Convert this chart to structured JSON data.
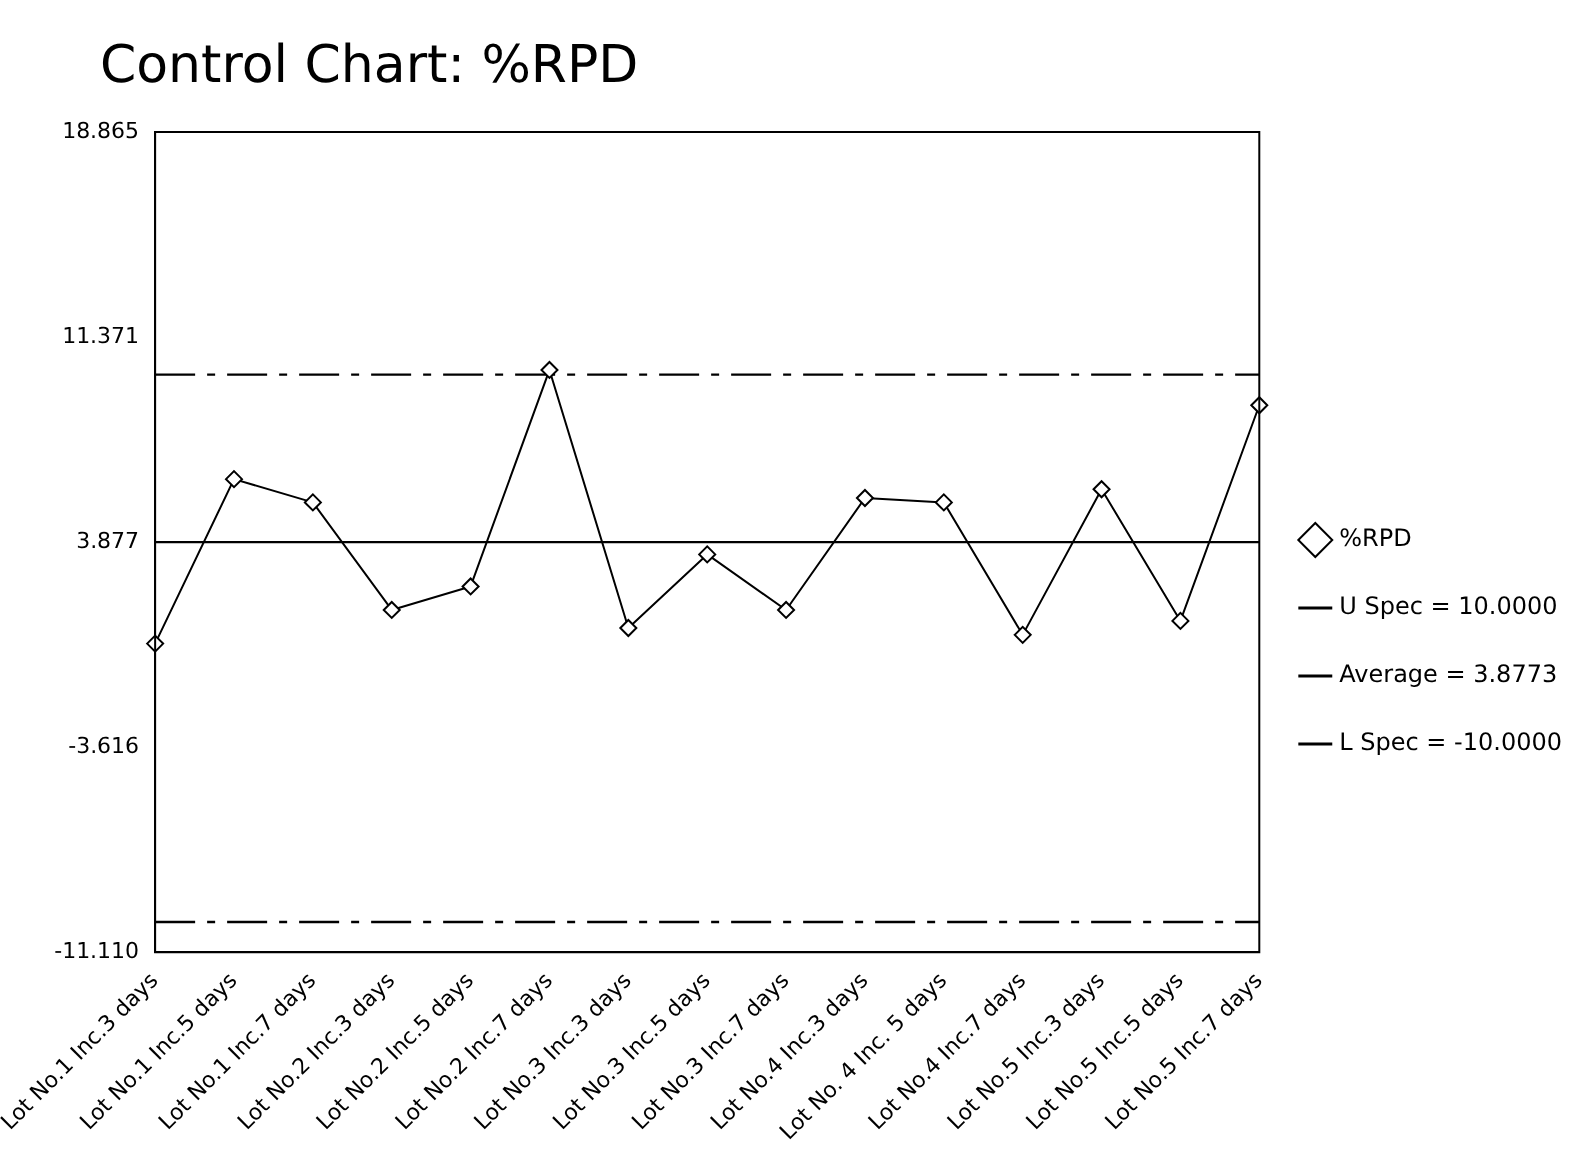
{
  "chart_data": {
    "type": "line",
    "title": "Control Chart: %RPD",
    "categories": [
      "Lot No.1 Inc.3 days",
      "Lot No.1 Inc.5 days",
      "Lot No.1 Inc.7 days",
      "Lot No.2 Inc.3 days",
      "Lot No.2 Inc.5 days",
      "Lot No.2 Inc.7 days",
      "Lot No.3 Inc.3 days",
      "Lot No.3 Inc.5 days",
      "Lot No.3 Inc.7 days",
      "Lot No.4 Inc.3 days",
      "Lot No. 4 Inc. 5 days",
      "Lot No.4 Inc.7 days",
      "Lot No.5 Inc.3 days",
      "Lot No.5 Inc.5 days",
      "Lot No.5 Inc.7 days"
    ],
    "series": [
      {
        "name": "%RPD",
        "color": "#000000",
        "values": [
          0.17,
          6.18,
          5.33,
          1.4,
          2.26,
          10.17,
          0.74,
          3.43,
          1.4,
          5.49,
          5.33,
          0.49,
          5.81,
          1.0,
          8.88
        ]
      }
    ],
    "ylim": [
      -11.11,
      18.865
    ],
    "yticks": [
      {
        "value": -11.11,
        "label": "-11.110"
      },
      -3.616,
      3.877,
      11.371,
      18.865
    ],
    "ref_lines": [
      {
        "axis": "y",
        "value": 10,
        "label": "U Spec = 10.0000",
        "line_style": "dashed",
        "color": "#000000"
      },
      {
        "axis": "y",
        "value": 3.8773,
        "label": "Average = 3.8773",
        "line_style": "solid",
        "color": "#000000"
      },
      {
        "axis": "y",
        "value": -10,
        "label": "L Spec = -10.0000",
        "line_style": "dashed",
        "color": "#000000"
      }
    ],
    "grid": false,
    "legend": "right",
    "marker": "diamond",
    "line_style": "solid"
  }
}
